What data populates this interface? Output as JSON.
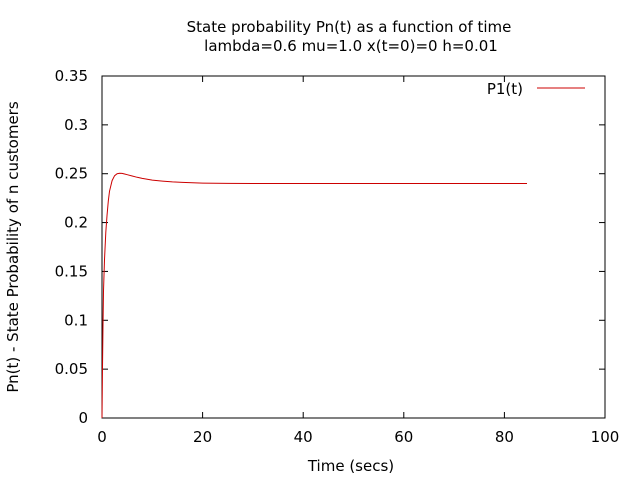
{
  "chart_data": {
    "type": "line",
    "title": "State probability Pn(t) as a function of time",
    "subtitle": "lambda=0.6 mu=1.0 x(t=0)=0 h=0.01",
    "xlabel": "Time (secs)",
    "ylabel": "Pn(t) - State Probability of n customers",
    "xlim": [
      0,
      100
    ],
    "ylim": [
      0,
      0.35
    ],
    "xticks": [
      "0",
      "20",
      "40",
      "60",
      "80",
      "100"
    ],
    "yticks": [
      "0",
      "0.05",
      "0.1",
      "0.15",
      "0.2",
      "0.25",
      "0.3",
      "0.35"
    ],
    "legend_position": "top-right",
    "grid": false,
    "series": [
      {
        "name": "P1(t)",
        "color": "#cc0000",
        "x": [
          0,
          0.1,
          0.2,
          0.3,
          0.5,
          0.75,
          1.0,
          1.25,
          1.5,
          2.0,
          2.5,
          3.0,
          3.5,
          4.0,
          4.5,
          5.0,
          6.0,
          7.0,
          8.0,
          9.0,
          10.0,
          12.0,
          14.0,
          16.0,
          18.0,
          20.0,
          25.0,
          30.0,
          40.0,
          50.0,
          60.0,
          70.0,
          80.0,
          84.5
        ],
        "y": [
          0.0,
          0.052,
          0.095,
          0.13,
          0.162,
          0.19,
          0.207,
          0.222,
          0.232,
          0.243,
          0.248,
          0.25,
          0.2505,
          0.2503,
          0.2497,
          0.249,
          0.2477,
          0.2463,
          0.2452,
          0.2443,
          0.2435,
          0.2424,
          0.2416,
          0.2411,
          0.2407,
          0.2404,
          0.2401,
          0.24,
          0.24,
          0.24,
          0.24,
          0.24,
          0.24,
          0.24
        ]
      }
    ]
  }
}
